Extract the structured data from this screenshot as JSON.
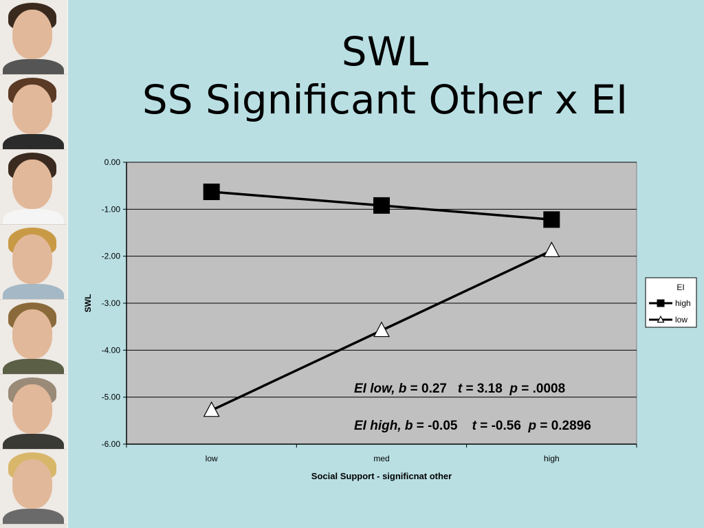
{
  "slide": {
    "title_line1": "SWL",
    "title_line2": "SS Significant Other x EI"
  },
  "chart_data": {
    "type": "line",
    "categories": [
      "low",
      "med",
      "high"
    ],
    "series": [
      {
        "name": "high",
        "marker": "filled-square",
        "values": [
          -0.63,
          -0.92,
          -1.22
        ]
      },
      {
        "name": "low",
        "marker": "open-triangle",
        "values": [
          -5.28,
          -3.58,
          -1.88
        ]
      }
    ],
    "xlabel": "Social Support - significnat other",
    "ylabel": "SWL",
    "ylim": [
      -6.0,
      0.0
    ],
    "yticks": [
      0.0,
      -1.0,
      -2.0,
      -3.0,
      -4.0,
      -5.0,
      -6.0
    ],
    "ytick_labels": [
      "0.00",
      "-1.00",
      "-2.00",
      "-3.00",
      "-4.00",
      "-5.00",
      "-6.00"
    ],
    "grid": true,
    "legend": {
      "title": "EI",
      "placement": "right"
    },
    "annotations": [
      {
        "group": "EI low,",
        "b_label": "b",
        "b_eq": " = 0.27",
        "t_label": "t",
        "t_eq": " = 3.18",
        "p_label": "p",
        "p_eq": " = .0008"
      },
      {
        "group": "EI high,",
        "b_label": "b",
        "b_eq": " = -0.05",
        "t_label": "t",
        "t_eq": " = -0.56",
        "p_label": "p",
        "p_eq": " = 0.2896"
      }
    ],
    "colors": {
      "plot_bg": "#c0c0c0",
      "line": "#000000",
      "slide_bg": "#b9dfe3"
    }
  }
}
